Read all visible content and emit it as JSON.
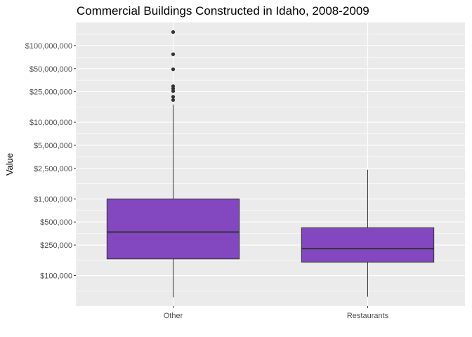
{
  "chart_data": {
    "type": "boxplot",
    "title": "Commercial Buildings Constructed in Idaho, 2008-2009",
    "xlabel": "",
    "ylabel": "Value",
    "y_scale": "log10",
    "ylim": [
      40000,
      200000000
    ],
    "y_ticks": [
      {
        "value": 100000,
        "label": "$100,000"
      },
      {
        "value": 250000,
        "label": "$250,000"
      },
      {
        "value": 500000,
        "label": "$500,000"
      },
      {
        "value": 1000000,
        "label": "$1,000,000"
      },
      {
        "value": 2500000,
        "label": "$2,500,000"
      },
      {
        "value": 5000000,
        "label": "$5,000,000"
      },
      {
        "value": 10000000,
        "label": "$10,000,000"
      },
      {
        "value": 25000000,
        "label": "$25,000,000"
      },
      {
        "value": 50000000,
        "label": "$50,000,000"
      },
      {
        "value": 100000000,
        "label": "$100,000,000"
      }
    ],
    "categories": [
      "Other",
      "Restaurants"
    ],
    "boxes": [
      {
        "category": "Other",
        "whisker_low": 52000,
        "q1": 165000,
        "median": 370000,
        "q3": 1000000,
        "whisker_high": 17000000,
        "outliers": [
          19500000,
          21500000,
          25500000,
          27500000,
          29500000,
          49000000,
          77000000,
          150000000
        ]
      },
      {
        "category": "Restaurants",
        "whisker_low": 53000,
        "q1": 150000,
        "median": 225000,
        "q3": 420000,
        "whisker_high": 2400000,
        "outliers": []
      }
    ],
    "box_color": "#8347bf",
    "panel_background": "#ebebeb",
    "grid": true,
    "legend": "none"
  }
}
